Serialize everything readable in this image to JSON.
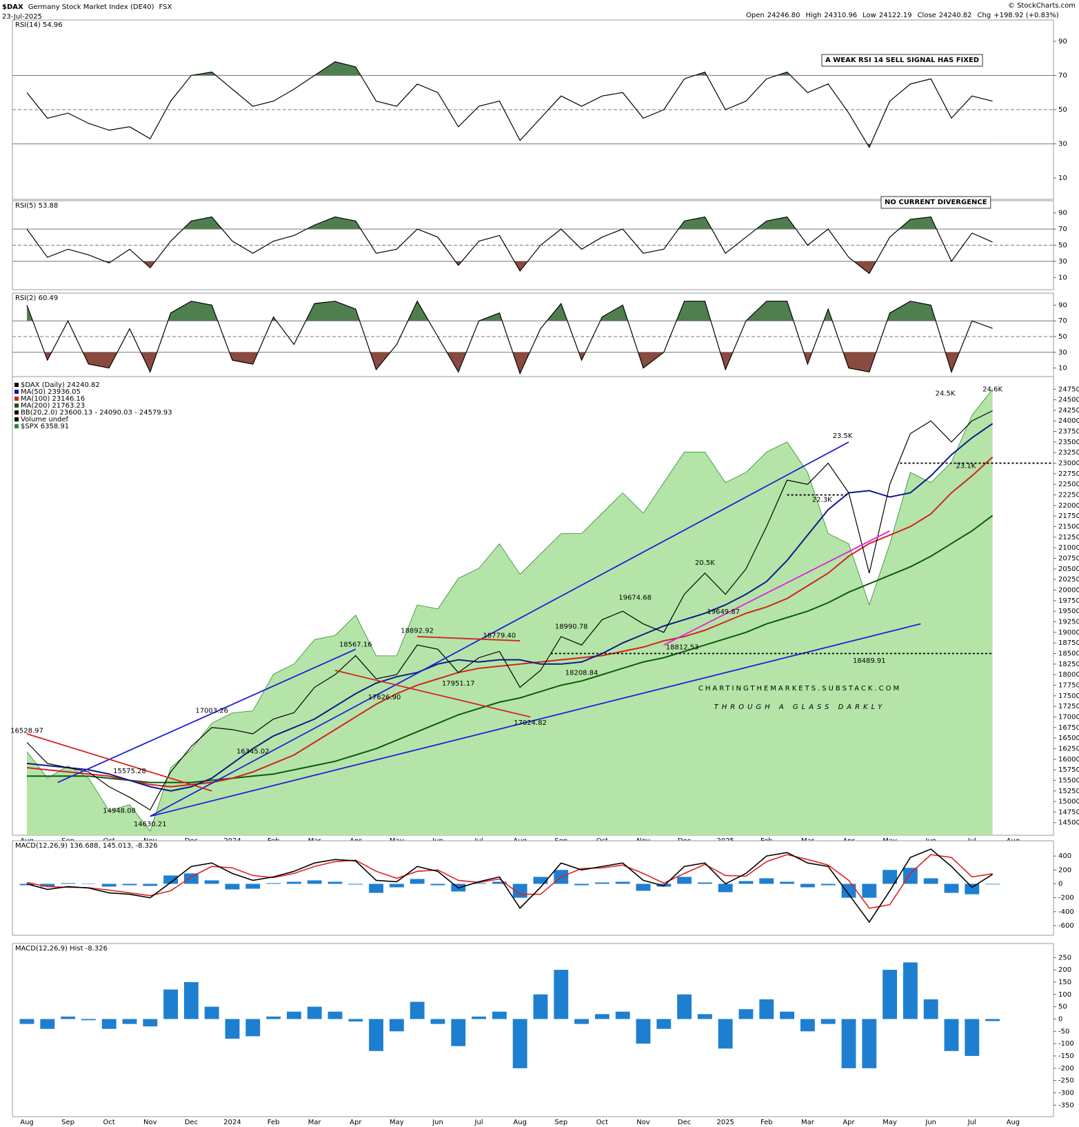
{
  "header": {
    "symbol": "$DAX",
    "name": "Germany Stock Market Index (DE40)",
    "exchange": "FSX",
    "date": "23-Jul-2025",
    "ohlc": [
      {
        "name": "Open",
        "value": 24246.8,
        "label": "24246.80"
      },
      {
        "name": "High",
        "value": 24310.96
      },
      {
        "name": "Low",
        "value": 24122.19
      },
      {
        "name": "Close",
        "value": 24240.82
      }
    ],
    "change_name": "Chg",
    "change": "+198.92 (+0.83%)",
    "credit": "© StockCharts.com"
  },
  "x_axis": {
    "labels": [
      "Aug",
      "Sep",
      "Oct",
      "Nov",
      "Dec",
      "2024",
      "Feb",
      "Mar",
      "Apr",
      "May",
      "Jun",
      "Jul",
      "Aug",
      "Sep",
      "Oct",
      "Nov",
      "Dec",
      "2025",
      "Feb",
      "Mar",
      "Apr",
      "May",
      "Jun",
      "Jul",
      "Aug"
    ]
  },
  "watermark": {
    "line1": "CHARTINGTHEMARKETS.SUBSTACK.COM",
    "line2": "THROUGH A GLASS DARKLY"
  },
  "chart_data": [
    {
      "type": "rsi",
      "title": "RSI(14) 54.96",
      "ylim": [
        0,
        100
      ],
      "yticks": [
        10,
        30,
        50,
        70,
        90
      ],
      "oversold": 30,
      "midline": 50,
      "overbought": 70,
      "color": "#000000",
      "fill_overbought": "#4f7f4f",
      "fill_oversold": "#8a4a40",
      "annotation": "A WEAK RSI 14 SELL SIGNAL HAS FIXED",
      "values": [
        60,
        45,
        48,
        42,
        38,
        40,
        33,
        55,
        70,
        72,
        62,
        52,
        55,
        62,
        70,
        78,
        75,
        55,
        52,
        65,
        60,
        40,
        52,
        55,
        32,
        45,
        58,
        52,
        58,
        60,
        45,
        50,
        68,
        72,
        50,
        55,
        68,
        72,
        60,
        65,
        48,
        28,
        55,
        65,
        68,
        45,
        58,
        54.96
      ]
    },
    {
      "type": "rsi",
      "title": "RSI(5) 53.88",
      "ylim": [
        0,
        100
      ],
      "yticks": [
        10,
        30,
        50,
        70,
        90
      ],
      "oversold": 30,
      "midline": 50,
      "overbought": 70,
      "color": "#000000",
      "fill_overbought": "#4f7f4f",
      "fill_oversold": "#8a4a40",
      "annotation": "NO CURRENT DIVERGENCE",
      "values": [
        70,
        35,
        45,
        38,
        28,
        45,
        22,
        55,
        80,
        85,
        55,
        40,
        55,
        62,
        75,
        85,
        80,
        40,
        45,
        70,
        60,
        25,
        55,
        62,
        18,
        50,
        70,
        45,
        60,
        70,
        40,
        45,
        80,
        85,
        40,
        60,
        80,
        85,
        50,
        70,
        35,
        15,
        60,
        82,
        85,
        30,
        65,
        53.88
      ]
    },
    {
      "type": "rsi",
      "title": "RSI(2) 60.49",
      "ylim": [
        0,
        100
      ],
      "yticks": [
        10,
        30,
        50,
        70,
        90
      ],
      "oversold": 30,
      "midline": 50,
      "overbought": 70,
      "color": "#000000",
      "fill_overbought": "#4f7f4f",
      "fill_oversold": "#8a4a40",
      "values": [
        90,
        20,
        70,
        15,
        10,
        60,
        5,
        80,
        95,
        90,
        20,
        15,
        75,
        40,
        92,
        95,
        85,
        8,
        40,
        95,
        50,
        5,
        70,
        80,
        3,
        60,
        92,
        20,
        75,
        90,
        10,
        30,
        95,
        95,
        8,
        70,
        95,
        95,
        15,
        85,
        10,
        5,
        80,
        95,
        90,
        5,
        70,
        60.49
      ]
    },
    {
      "type": "line",
      "ylim": [
        14300,
        24950
      ],
      "y2lim": [
        4190,
        6400
      ],
      "yticks": [
        14500,
        14750,
        15000,
        15250,
        15500,
        15750,
        16000,
        16250,
        16500,
        16750,
        17000,
        17250,
        17500,
        17750,
        18000,
        18250,
        18500,
        18750,
        19000,
        19250,
        19500,
        19750,
        20000,
        20250,
        20500,
        20750,
        21000,
        21250,
        21500,
        21750,
        22000,
        22250,
        22500,
        22750,
        23000,
        23250,
        23500,
        23750,
        24000,
        24250,
        24500,
        24750
      ],
      "legend_notes": [
        "BB(20,2.0) 23600.13 - 24090.03 - 24579.93",
        "Volume undef"
      ],
      "series": [
        {
          "name": "$DAX (Daily) 24240.82",
          "color": "#000000",
          "values": [
            16400,
            15900,
            15800,
            15700,
            15350,
            15100,
            14800,
            15700,
            16300,
            16750,
            16700,
            16600,
            16950,
            17100,
            17700,
            18000,
            18450,
            17900,
            18000,
            18700,
            18600,
            18050,
            18400,
            18550,
            17700,
            18100,
            18900,
            18700,
            19300,
            19500,
            19200,
            19000,
            19900,
            20400,
            19900,
            20500,
            21500,
            22600,
            22500,
            23000,
            22300,
            20400,
            22500,
            23700,
            24000,
            23500,
            24000,
            24240.82
          ]
        },
        {
          "name": "MA(50) 23936.05",
          "color": "#0a1a8a",
          "values": [
            15900,
            15850,
            15800,
            15750,
            15650,
            15500,
            15350,
            15250,
            15350,
            15550,
            15900,
            16250,
            16550,
            16750,
            16950,
            17250,
            17550,
            17800,
            17950,
            18050,
            18250,
            18350,
            18300,
            18350,
            18350,
            18250,
            18250,
            18300,
            18500,
            18750,
            18950,
            19150,
            19300,
            19450,
            19650,
            19900,
            20200,
            20700,
            21300,
            21900,
            22300,
            22350,
            22200,
            22300,
            22700,
            23200,
            23600,
            23936.05
          ]
        },
        {
          "name": "MA(100) 23146.16",
          "color": "#d42020",
          "values": [
            15800,
            15750,
            15700,
            15650,
            15600,
            15500,
            15400,
            15350,
            15400,
            15450,
            15550,
            15700,
            15900,
            16100,
            16400,
            16700,
            17000,
            17300,
            17550,
            17750,
            17900,
            18050,
            18150,
            18200,
            18250,
            18300,
            18350,
            18400,
            18450,
            18550,
            18650,
            18800,
            18900,
            19050,
            19250,
            19450,
            19600,
            19800,
            20100,
            20400,
            20800,
            21100,
            21300,
            21500,
            21800,
            22300,
            22700,
            23146.16
          ]
        },
        {
          "name": "MA(200) 21763.23",
          "color": "#0a5a0a",
          "values": [
            15600,
            15600,
            15600,
            15600,
            15550,
            15500,
            15450,
            15450,
            15450,
            15500,
            15550,
            15600,
            15650,
            15750,
            15850,
            15950,
            16100,
            16250,
            16450,
            16650,
            16850,
            17050,
            17200,
            17350,
            17450,
            17600,
            17750,
            17850,
            18000,
            18150,
            18300,
            18400,
            18550,
            18700,
            18850,
            19000,
            19200,
            19350,
            19500,
            19700,
            19950,
            20150,
            20350,
            20550,
            20800,
            21100,
            21400,
            21763.23
          ]
        },
        {
          "name": "$SPX 6358.91",
          "color": "#2a8a2a",
          "fill": "#b4e4a8",
          "axis": "y2",
          "values": [
            4580,
            4450,
            4510,
            4450,
            4290,
            4320,
            4190,
            4500,
            4590,
            4720,
            4770,
            4780,
            4960,
            5010,
            5130,
            5150,
            5250,
            5050,
            5050,
            5300,
            5280,
            5430,
            5480,
            5600,
            5450,
            5550,
            5650,
            5650,
            5750,
            5850,
            5750,
            5900,
            6050,
            6050,
            5900,
            5950,
            6050,
            6100,
            5950,
            5650,
            5600,
            5300,
            5600,
            5950,
            5900,
            6000,
            6230,
            6358.91
          ]
        }
      ],
      "price_labels": [
        {
          "x": 0,
          "value": 16528.97
        },
        {
          "x": 5,
          "value": 15575.28
        },
        {
          "x": 4.5,
          "value": 14948.08
        },
        {
          "x": 6,
          "value": 14630.21
        },
        {
          "x": 9,
          "value": 17003.26
        },
        {
          "x": 11,
          "value": 16345.02
        },
        {
          "x": 16,
          "value": 18567.16
        },
        {
          "x": 17.4,
          "value": 17626.9,
          "label": "17626.90"
        },
        {
          "x": 19,
          "value": 18892.92
        },
        {
          "x": 21,
          "value": 17951.17
        },
        {
          "x": 23,
          "value": 18779.4,
          "label": "18779.40"
        },
        {
          "x": 26.5,
          "value": 18990.78
        },
        {
          "x": 27,
          "value": 18208.84
        },
        {
          "x": 24.5,
          "value": 17024.82
        },
        {
          "x": 29.6,
          "value": 19674.68
        },
        {
          "x": 31.9,
          "value": 18812.53
        },
        {
          "x": 33.9,
          "value": 19649.87
        },
        {
          "x": 33,
          "value": 20500,
          "label": "20.5K"
        },
        {
          "x": 39.7,
          "value": 23500,
          "label": "23.5K"
        },
        {
          "x": 38.7,
          "value": 22300,
          "label": "22.3K"
        },
        {
          "x": 41,
          "value": 18489.91
        },
        {
          "x": 44.7,
          "value": 24500,
          "label": "24.5K"
        },
        {
          "x": 45.7,
          "value": 23100,
          "label": "23.1K"
        },
        {
          "x": 47,
          "value": 24600,
          "label": "24.6K"
        }
      ],
      "trendlines": [
        {
          "color": "#1f1fd6",
          "points": [
            [
              6,
              14650
            ],
            [
              40,
              23500
            ]
          ]
        },
        {
          "color": "#1f1fd6",
          "points": [
            [
              6,
              14650
            ],
            [
              43.5,
              19200
            ]
          ]
        },
        {
          "color": "#1f1fd6",
          "points": [
            [
              1.5,
              15450
            ],
            [
              16,
              18600
            ]
          ]
        },
        {
          "color": "#d42020",
          "points": [
            [
              0,
              16600
            ],
            [
              9,
              15250
            ]
          ]
        },
        {
          "color": "#d42020",
          "points": [
            [
              15,
              18100
            ],
            [
              24.5,
              17000
            ]
          ]
        },
        {
          "color": "#d42020",
          "points": [
            [
              19,
              18900
            ],
            [
              24,
              18800
            ]
          ]
        },
        {
          "color": "#e020e0",
          "points": [
            [
              31,
              18700
            ],
            [
              42,
              21400
            ]
          ]
        },
        {
          "color": "#000000",
          "dashed": true,
          "points": [
            [
              25.5,
              18500
            ],
            [
              47,
              18500
            ]
          ]
        },
        {
          "color": "#000000",
          "dashed": true,
          "points": [
            [
              42.5,
              23000
            ],
            [
              50,
              23000
            ]
          ]
        },
        {
          "color": "#000000",
          "dashed": true,
          "points": [
            [
              37,
              22250
            ],
            [
              40,
              22250
            ]
          ]
        }
      ]
    },
    {
      "type": "macd",
      "title": "MACD(12,26,9) 136.688, 145.013, -8.326",
      "ylim": [
        -680,
        560
      ],
      "yticks": [
        -600,
        -400,
        -200,
        0,
        200,
        400
      ],
      "series": [
        {
          "color": "#000000",
          "values": [
            0,
            -80,
            -40,
            -60,
            -130,
            -150,
            -200,
            20,
            250,
            300,
            150,
            50,
            100,
            180,
            300,
            350,
            330,
            50,
            30,
            250,
            180,
            -60,
            30,
            100,
            -350,
            -50,
            300,
            200,
            250,
            300,
            50,
            -30,
            250,
            300,
            0,
            150,
            400,
            450,
            300,
            250,
            -150,
            -550,
            -100,
            380,
            500,
            250,
            -50,
            136.688
          ]
        },
        {
          "color": "#e02020",
          "values": [
            20,
            -40,
            -50,
            -55,
            -90,
            -130,
            -170,
            -100,
            100,
            250,
            230,
            120,
            90,
            150,
            250,
            320,
            340,
            180,
            80,
            180,
            200,
            50,
            20,
            70,
            -150,
            -150,
            100,
            220,
            230,
            270,
            150,
            10,
            150,
            280,
            120,
            110,
            320,
            420,
            350,
            270,
            50,
            -350,
            -300,
            150,
            420,
            380,
            100,
            145.013
          ]
        }
      ]
    },
    {
      "type": "bar",
      "title": "MACD(12,26,9) Hist -8.326",
      "ylim": [
        -380,
        290
      ],
      "yticks": [
        -350,
        -300,
        -250,
        -200,
        -150,
        -100,
        -50,
        0,
        50,
        100,
        150,
        200,
        250
      ],
      "color": "#1e7fd0",
      "values": [
        -20,
        -40,
        10,
        -5,
        -40,
        -20,
        -30,
        120,
        150,
        50,
        -80,
        -70,
        10,
        30,
        50,
        30,
        -10,
        -130,
        -50,
        70,
        -20,
        -110,
        10,
        30,
        -200,
        100,
        200,
        -20,
        20,
        30,
        -100,
        -40,
        100,
        20,
        -120,
        40,
        80,
        30,
        -50,
        -20,
        -200,
        -200,
        200,
        230,
        80,
        -130,
        -150,
        -8.326
      ]
    }
  ]
}
